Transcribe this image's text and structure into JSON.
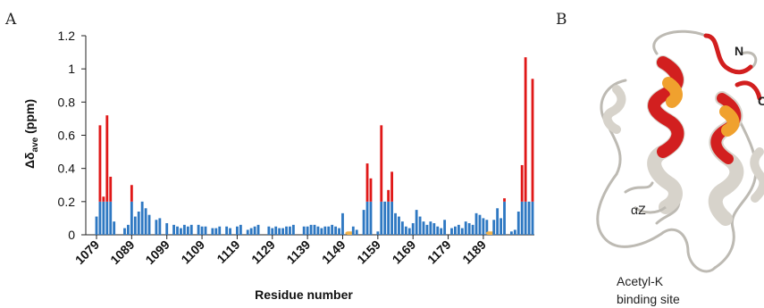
{
  "panel_a_label": "A",
  "panel_b_label": "B",
  "chart_data": {
    "type": "bar",
    "ylabel_main": "Δδ",
    "ylabel_sub": "ave",
    "ylabel_unit": " (ppm)",
    "xlabel": "Residue number",
    "ylim": [
      0,
      1.2
    ],
    "yticks": [
      "0",
      "0.2",
      "0.4",
      "0.6",
      "0.8",
      "1",
      "1.2"
    ],
    "ytick_values": [
      0,
      0.2,
      0.4,
      0.6,
      0.8,
      1.0,
      1.2
    ],
    "xtick_labels": [
      "1079",
      "1089",
      "1099",
      "1109",
      "1119",
      "1129",
      "1139",
      "1149",
      "1159",
      "1169",
      "1179",
      "1189"
    ],
    "x_start": 1079,
    "x_end": 1197,
    "cap": 0.2,
    "colors": {
      "below": "#2e78c2",
      "above": "#e01818",
      "unassigned": "#f2b24a"
    },
    "values": [
      0.11,
      0.66,
      0.23,
      0.72,
      0.35,
      0.08,
      0,
      0,
      0.04,
      0.06,
      0.3,
      0.11,
      0.14,
      0.2,
      0.16,
      0.12,
      0,
      0.09,
      0.1,
      0,
      0.07,
      0,
      0.06,
      0.05,
      0.04,
      0.06,
      0.05,
      0.06,
      0,
      0.06,
      0.05,
      0.05,
      0,
      0.04,
      0.04,
      0.05,
      0,
      0.05,
      0.04,
      0,
      0.05,
      0.06,
      0,
      0.03,
      0.04,
      0.05,
      0.06,
      0,
      0,
      0.05,
      0.04,
      0.05,
      0.04,
      0.04,
      0.05,
      0.05,
      0.06,
      0,
      0,
      0.05,
      0.05,
      0.06,
      0.06,
      0.05,
      0.04,
      0.05,
      0.05,
      0.06,
      0.05,
      0.04,
      0.13,
      0,
      0.04,
      0.05,
      0.03,
      0,
      0.15,
      0.43,
      0.34,
      0,
      0.02,
      0.66,
      0.2,
      0.27,
      0.38,
      0.13,
      0.11,
      0.08,
      0.05,
      0.04,
      0.07,
      0.15,
      0.11,
      0.08,
      0.06,
      0.08,
      0.07,
      0.05,
      0.04,
      0.09,
      0,
      0.04,
      0.05,
      0.06,
      0.04,
      0.08,
      0.07,
      0.06,
      0.13,
      0.12,
      0.1,
      0.09,
      0.14,
      0.09,
      0.16,
      0.1,
      0.22,
      0,
      0.02,
      0.03,
      0.14,
      0.42,
      1.07,
      0.2,
      0.94
    ],
    "unassigned_x": [
      1151,
      1191
    ]
  },
  "annotations": {
    "n_terminus": "N",
    "c_terminus": "C",
    "helix_label": "αZ",
    "site_line1": "Acetyl-K",
    "site_line2": "binding site"
  }
}
